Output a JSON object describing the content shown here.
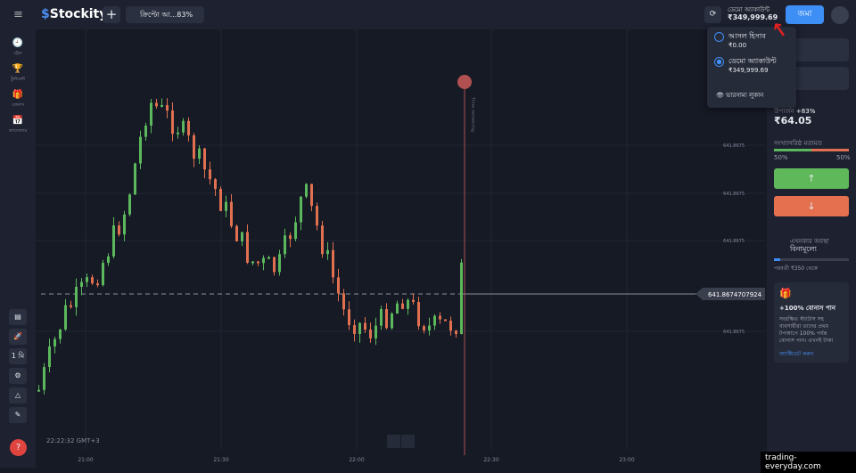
{
  "header": {
    "logo": "Stockity",
    "asset": "ক্রিপ্টো আ...83%",
    "account_type": "ডেমো অ্যাকাউন্ট",
    "balance": "₹349,999.69",
    "deposit": "জমা"
  },
  "sidebar": {
    "items": [
      "ট্রেড",
      "টুর্নামেন্ট",
      "বোনাস",
      "ক্যালেন্ডার"
    ],
    "timeframe": "1 মি"
  },
  "chart": {
    "price_label": "641.8674707924",
    "y_labels": [
      "641.8675",
      "641.8675",
      "641.8675",
      "641.8675"
    ],
    "x_labels": [
      "21:00",
      "21:30",
      "22:00",
      "22:30",
      "23:00"
    ],
    "clock": "22:22:32 GMT+3",
    "time_remaining": "Time remaining"
  },
  "dropdown": {
    "accounts": [
      {
        "name": "আসল হিসাব",
        "balance": "₹0.00"
      },
      {
        "name": "ডেমো অ্যাকাউন্ট",
        "balance": "₹349,999.69"
      }
    ],
    "hide": "ভারসাম্য লুকান"
  },
  "panel": {
    "payout_label": "উপার্জন",
    "payout_pct": "+83%",
    "payout": "₹64.05",
    "sentiment_label": "সংখ্যাগরিষ্ঠ মতামত",
    "sentiment_left": "50%",
    "sentiment_right": "50%",
    "status_label": "এখনকার অবস্থা",
    "status": "বিনামূল্যে",
    "status_next": "পরবর্তী ₹350 থেকে",
    "bonus_title": "+100% বোনাস পান",
    "bonus_text": "সংরক্ষিত স্ট্যাটাস সহ ব্যবসায়ীরা তাদের প্রথম টপআপে 100% পর্যন্ত বোনাস পান। এখনই টাকা",
    "bonus_link": "অ্যাক্টিভেট করুন"
  },
  "watermark": "trading-everyday.com"
}
